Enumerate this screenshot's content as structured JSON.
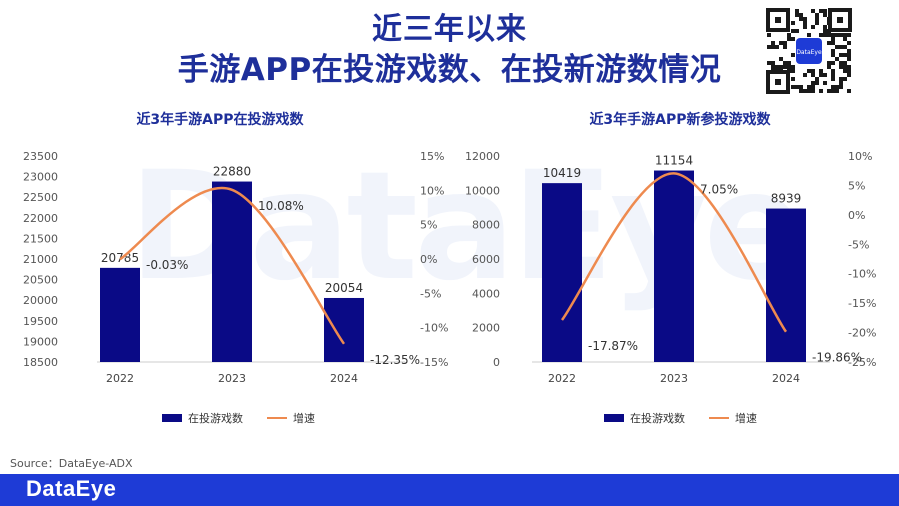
{
  "title_line1": "近三年以来",
  "title_line2": "手游APP在投游戏数、在投新游数情况",
  "watermark": "DataEye",
  "source": "Source：DataEye-ADX",
  "footer_logo": "DataEye",
  "qr_label": "DataEye",
  "colors": {
    "bar": "#0a0a86",
    "line": "#ee8a4f",
    "title": "#1e2f9a",
    "footer": "#1e3bd6"
  },
  "chart_data": [
    {
      "type": "bar",
      "title": "近3年手游APP在投游戏数",
      "categories": [
        "2022",
        "2023",
        "2024"
      ],
      "series": [
        {
          "name": "在投游戏数",
          "type": "bar",
          "axis": "left",
          "values": [
            20785,
            22880,
            20054
          ],
          "labels": [
            "20785",
            "22880",
            "20054"
          ]
        },
        {
          "name": "增速",
          "type": "line",
          "axis": "right",
          "values": [
            -0.03,
            10.08,
            -12.35
          ],
          "labels": [
            "-0.03%",
            "10.08%",
            "-12.35%"
          ]
        }
      ],
      "ylim_left": [
        18500,
        23500
      ],
      "yticks_left": [
        "23500",
        "23000",
        "22500",
        "22000",
        "21500",
        "21000",
        "20500",
        "20000",
        "19500",
        "19000",
        "18500"
      ],
      "ylim_right": [
        -15,
        15
      ],
      "yticks_right": [
        "15%",
        "10%",
        "5%",
        "0%",
        "-5%",
        "-10%",
        "-15%"
      ],
      "grid": false,
      "legend": "bottom"
    },
    {
      "type": "bar",
      "title": "近3年手游APP新参投游戏数",
      "categories": [
        "2022",
        "2023",
        "2024"
      ],
      "series": [
        {
          "name": "在投游戏数",
          "type": "bar",
          "axis": "left",
          "values": [
            10419,
            11154,
            8939
          ],
          "labels": [
            "10419",
            "11154",
            "8939"
          ]
        },
        {
          "name": "增速",
          "type": "line",
          "axis": "right",
          "values": [
            -17.87,
            7.05,
            -19.86
          ],
          "labels": [
            "-17.87%",
            "7.05%",
            "-19.86%"
          ]
        }
      ],
      "ylim_left": [
        0,
        12000
      ],
      "yticks_left": [
        "12000",
        "10000",
        "8000",
        "6000",
        "4000",
        "2000",
        "0"
      ],
      "ylim_right": [
        -25,
        10
      ],
      "yticks_right": [
        "10%",
        "5%",
        "0%",
        "-5%",
        "-10%",
        "-15%",
        "-20%",
        "-25%"
      ],
      "grid": false,
      "legend": "bottom"
    }
  ]
}
